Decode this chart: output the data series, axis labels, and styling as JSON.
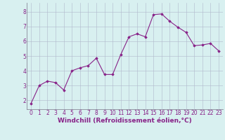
{
  "x": [
    0,
    1,
    2,
    3,
    4,
    5,
    6,
    7,
    8,
    9,
    10,
    11,
    12,
    13,
    14,
    15,
    16,
    17,
    18,
    19,
    20,
    21,
    22,
    23
  ],
  "y": [
    1.8,
    3.0,
    3.3,
    3.2,
    2.7,
    4.0,
    4.2,
    4.35,
    4.85,
    3.75,
    3.75,
    5.1,
    6.3,
    6.5,
    6.3,
    7.8,
    7.85,
    7.35,
    6.95,
    6.6,
    5.7,
    5.75,
    5.85,
    5.35
  ],
  "line_color": "#882288",
  "marker": "D",
  "marker_size": 1.8,
  "line_width": 0.8,
  "bg_color": "#d8f0f0",
  "grid_color": "#b0b8cc",
  "xlabel": "Windchill (Refroidissement éolien,°C)",
  "xlabel_color": "#882288",
  "xlabel_fontsize": 6.5,
  "tick_color": "#882288",
  "tick_fontsize": 5.5,
  "ylabel_ticks": [
    2,
    3,
    4,
    5,
    6,
    7,
    8
  ],
  "ylim": [
    1.4,
    8.6
  ],
  "xlim": [
    -0.5,
    23.5
  ]
}
